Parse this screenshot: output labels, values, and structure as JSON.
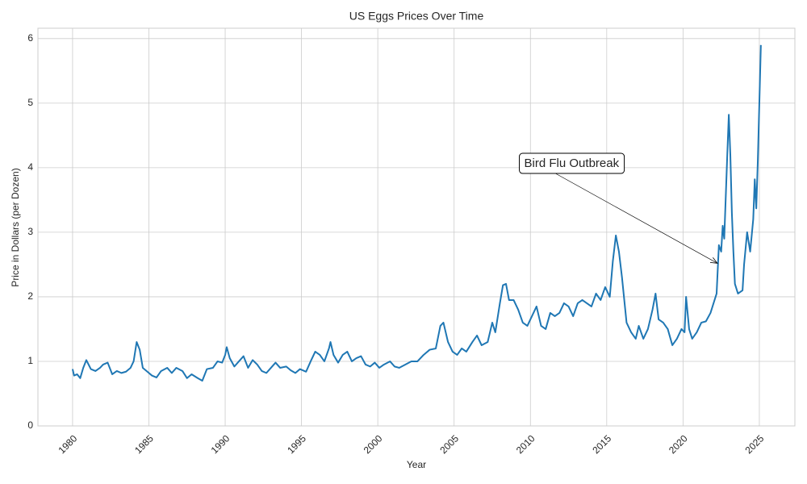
{
  "chart_data": {
    "type": "line",
    "title": "US Eggs Prices Over Time",
    "xlabel": "Year",
    "ylabel": "Price in Dollars (per Dozen)",
    "xlim": [
      1977.73,
      2027.33
    ],
    "ylim": [
      0,
      6.16
    ],
    "xticks": [
      1980,
      1985,
      1990,
      1995,
      2000,
      2005,
      2010,
      2015,
      2020,
      2025
    ],
    "yticks": [
      0,
      1,
      2,
      3,
      4,
      5,
      6
    ],
    "grid": true,
    "color": "#1f77b4",
    "x": [
      1980.0,
      1980.1,
      1980.3,
      1980.5,
      1980.7,
      1980.9,
      1981.2,
      1981.5,
      1981.8,
      1982.0,
      1982.3,
      1982.6,
      1982.9,
      1983.2,
      1983.5,
      1983.8,
      1984.0,
      1984.2,
      1984.4,
      1984.6,
      1984.9,
      1985.2,
      1985.5,
      1985.8,
      1986.2,
      1986.5,
      1986.8,
      1987.2,
      1987.5,
      1987.8,
      1988.2,
      1988.5,
      1988.8,
      1989.2,
      1989.5,
      1989.8,
      1990.0,
      1990.1,
      1990.3,
      1990.6,
      1990.9,
      1991.2,
      1991.5,
      1991.8,
      1992.1,
      1992.4,
      1992.7,
      1993.0,
      1993.3,
      1993.6,
      1994.0,
      1994.3,
      1994.6,
      1994.9,
      1995.3,
      1995.6,
      1995.9,
      1996.2,
      1996.5,
      1996.8,
      1996.9,
      1997.1,
      1997.4,
      1997.7,
      1998.0,
      1998.3,
      1998.6,
      1998.9,
      1999.2,
      1999.5,
      1999.8,
      2000.1,
      2000.4,
      2000.8,
      2001.1,
      2001.4,
      2001.8,
      2002.2,
      2002.6,
      2003.0,
      2003.4,
      2003.8,
      2004.1,
      2004.3,
      2004.6,
      2004.9,
      2005.2,
      2005.5,
      2005.8,
      2006.2,
      2006.5,
      2006.8,
      2007.2,
      2007.5,
      2007.7,
      2008.0,
      2008.2,
      2008.4,
      2008.6,
      2008.9,
      2009.2,
      2009.5,
      2009.8,
      2010.1,
      2010.4,
      2010.7,
      2011.0,
      2011.3,
      2011.6,
      2011.9,
      2012.2,
      2012.5,
      2012.8,
      2013.1,
      2013.4,
      2013.7,
      2014.0,
      2014.3,
      2014.6,
      2014.9,
      2015.2,
      2015.4,
      2015.6,
      2015.8,
      2016.0,
      2016.3,
      2016.6,
      2016.9,
      2017.1,
      2017.4,
      2017.7,
      2018.0,
      2018.2,
      2018.4,
      2018.7,
      2019.0,
      2019.3,
      2019.6,
      2019.9,
      2020.1,
      2020.2,
      2020.4,
      2020.6,
      2020.9,
      2021.2,
      2021.5,
      2021.8,
      2022.0,
      2022.2,
      2022.35,
      2022.5,
      2022.6,
      2022.7,
      2022.8,
      2022.9,
      2023.0,
      2023.1,
      2023.2,
      2023.3,
      2023.4,
      2023.6,
      2023.9,
      2024.0,
      2024.2,
      2024.4,
      2024.6,
      2024.7,
      2024.8,
      2024.9,
      2025.0,
      2025.1
    ],
    "values": [
      0.88,
      0.78,
      0.8,
      0.74,
      0.9,
      1.02,
      0.88,
      0.85,
      0.9,
      0.95,
      0.98,
      0.8,
      0.85,
      0.82,
      0.84,
      0.9,
      1.0,
      1.3,
      1.18,
      0.9,
      0.84,
      0.78,
      0.75,
      0.85,
      0.9,
      0.82,
      0.9,
      0.85,
      0.74,
      0.8,
      0.74,
      0.7,
      0.88,
      0.9,
      1.0,
      0.98,
      1.1,
      1.22,
      1.05,
      0.92,
      1.0,
      1.08,
      0.9,
      1.02,
      0.95,
      0.85,
      0.82,
      0.9,
      0.98,
      0.9,
      0.92,
      0.86,
      0.82,
      0.88,
      0.84,
      1.0,
      1.15,
      1.1,
      1.0,
      1.2,
      1.3,
      1.1,
      0.98,
      1.1,
      1.15,
      1.0,
      1.05,
      1.08,
      0.95,
      0.92,
      0.98,
      0.9,
      0.95,
      1.0,
      0.92,
      0.9,
      0.95,
      1.0,
      1.0,
      1.1,
      1.18,
      1.2,
      1.55,
      1.6,
      1.3,
      1.15,
      1.1,
      1.2,
      1.15,
      1.3,
      1.4,
      1.25,
      1.3,
      1.6,
      1.45,
      1.9,
      2.18,
      2.2,
      1.95,
      1.95,
      1.8,
      1.6,
      1.55,
      1.7,
      1.85,
      1.55,
      1.5,
      1.75,
      1.7,
      1.75,
      1.9,
      1.85,
      1.7,
      1.9,
      1.95,
      1.9,
      1.85,
      2.05,
      1.95,
      2.15,
      2.0,
      2.55,
      2.95,
      2.7,
      2.3,
      1.6,
      1.45,
      1.35,
      1.55,
      1.35,
      1.5,
      1.8,
      2.05,
      1.65,
      1.6,
      1.5,
      1.25,
      1.35,
      1.5,
      1.45,
      2.0,
      1.5,
      1.35,
      1.45,
      1.6,
      1.62,
      1.75,
      1.9,
      2.05,
      2.8,
      2.7,
      3.1,
      2.9,
      3.55,
      4.2,
      4.82,
      4.2,
      3.3,
      2.7,
      2.2,
      2.05,
      2.1,
      2.5,
      3.0,
      2.7,
      3.2,
      3.82,
      3.37,
      4.1,
      5.0,
      5.9
    ],
    "annotation": {
      "text": "Bird Flu Outbreak",
      "xy": [
        2022.25,
        2.52
      ],
      "xytext": [
        2012.7,
        4.06
      ]
    }
  }
}
